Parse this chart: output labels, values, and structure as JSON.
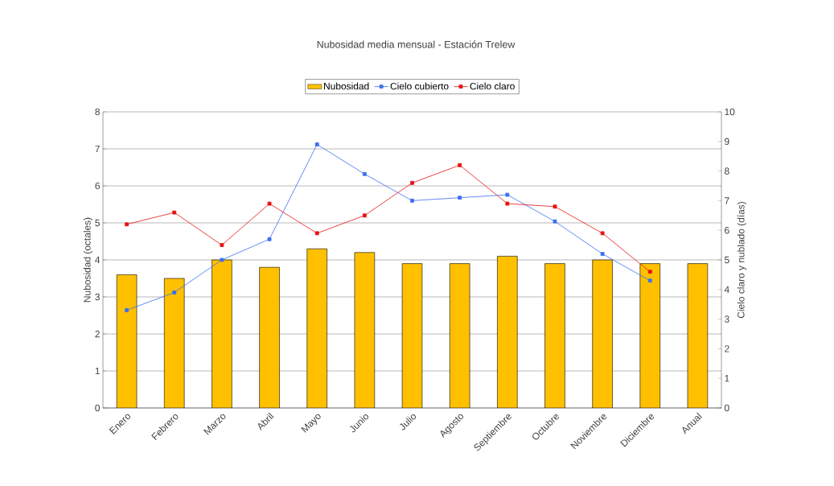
{
  "chart_data": {
    "type": "bar",
    "title": "Nubosidad media mensual - Estación Trelew",
    "ylabel": "Nubosidad (octales)",
    "y2label": "Cielo claro y nublado (días)",
    "categories": [
      "Enero",
      "Febrero",
      "Marzo",
      "Abril",
      "Mayo",
      "Junio",
      "Julio",
      "Agosto",
      "Septiembre",
      "Octubre",
      "Noviembre",
      "Diciembre",
      "Anual"
    ],
    "series": [
      {
        "name": "Nubosidad",
        "color": "#ffc000",
        "values": [
          3.6,
          3.5,
          4.0,
          3.8,
          4.3,
          4.2,
          3.9,
          3.9,
          4.1,
          3.9,
          4.0,
          3.9,
          3.9
        ]
      },
      {
        "name": "Cielo cubierto",
        "type": "line",
        "axis": "y2",
        "color": "#3a6ff0",
        "values": [
          3.3,
          3.9,
          5.0,
          5.7,
          8.9,
          7.9,
          7.0,
          7.1,
          7.2,
          6.3,
          5.2,
          4.3,
          null
        ]
      },
      {
        "name": "Cielo claro",
        "type": "line",
        "axis": "y2",
        "color": "#e81010",
        "values": [
          6.2,
          6.6,
          5.5,
          6.9,
          5.9,
          6.5,
          7.6,
          8.2,
          6.9,
          6.8,
          5.9,
          4.6,
          null
        ]
      }
    ],
    "ylim": [
      0,
      8
    ],
    "yticks": [
      0,
      1,
      2,
      3,
      4,
      5,
      6,
      7,
      8
    ],
    "y2lim": [
      0,
      10
    ],
    "y2ticks": [
      0,
      1,
      2,
      3,
      4,
      5,
      6,
      7,
      8,
      9,
      10
    ],
    "grid": "y",
    "legend": "top",
    "marker": "square",
    "line_style": "solid"
  }
}
